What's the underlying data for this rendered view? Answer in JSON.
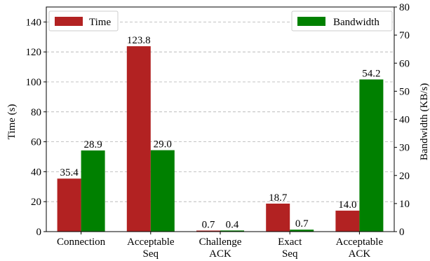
{
  "chart_data": {
    "type": "bar",
    "categories": [
      [
        "Connection"
      ],
      [
        "Acceptable",
        "Seq"
      ],
      [
        "Challenge",
        "ACK"
      ],
      [
        "Exact",
        "Seq"
      ],
      [
        "Acceptable",
        "ACK"
      ]
    ],
    "series": [
      {
        "name": "Time",
        "axis": "left",
        "color": "#b22222",
        "values": [
          35.4,
          123.8,
          0.7,
          18.7,
          14.0
        ],
        "labels": [
          "35.4",
          "123.8",
          "0.7",
          "18.7",
          "14.0"
        ]
      },
      {
        "name": "Bandwidth",
        "axis": "right",
        "color": "#008000",
        "values": [
          28.9,
          29.0,
          0.4,
          0.7,
          54.2
        ],
        "labels": [
          "28.9",
          "29.0",
          "0.4",
          "0.7",
          "54.2"
        ]
      }
    ],
    "ylabel_left": "Time (s)",
    "ylabel_right": "Bandwidth (KB/s)",
    "ylim_left": [
      0,
      150
    ],
    "ylim_right": [
      0,
      80
    ],
    "yticks_left": [
      0,
      20,
      40,
      60,
      80,
      100,
      120,
      140
    ],
    "yticks_right": [
      0,
      10,
      20,
      30,
      40,
      50,
      60,
      70,
      80
    ],
    "grid": true,
    "legend": [
      "top-left",
      "top-right"
    ]
  }
}
